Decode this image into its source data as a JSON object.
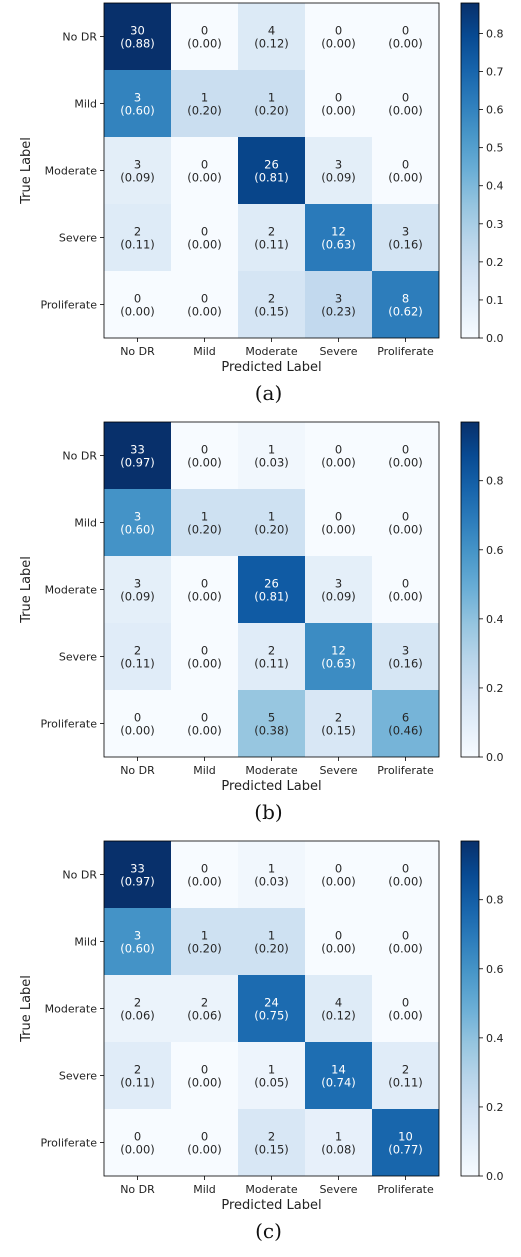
{
  "chart_data": [
    {
      "type": "heatmap",
      "caption": "(a)",
      "xlabel": "Predicted Label",
      "ylabel": "True Label",
      "x_categories": [
        "No DR",
        "Mild",
        "Moderate",
        "Severe",
        "Proliferate"
      ],
      "y_categories": [
        "No DR",
        "Mild",
        "Moderate",
        "Severe",
        "Proliferate"
      ],
      "counts": [
        [
          30,
          0,
          4,
          0,
          0
        ],
        [
          3,
          1,
          1,
          0,
          0
        ],
        [
          3,
          0,
          26,
          3,
          0
        ],
        [
          2,
          0,
          2,
          12,
          3
        ],
        [
          0,
          0,
          2,
          3,
          8
        ]
      ],
      "values": [
        [
          0.88,
          0.0,
          0.12,
          0.0,
          0.0
        ],
        [
          0.6,
          0.2,
          0.2,
          0.0,
          0.0
        ],
        [
          0.09,
          0.0,
          0.81,
          0.09,
          0.0
        ],
        [
          0.11,
          0.0,
          0.11,
          0.63,
          0.16
        ],
        [
          0.0,
          0.0,
          0.15,
          0.23,
          0.62
        ]
      ],
      "colorbar": {
        "range": [
          0,
          0.88
        ],
        "colormap": "Blues",
        "ticks": [
          "0.0",
          "0.1",
          "0.2",
          "0.3",
          "0.4",
          "0.5",
          "0.6",
          "0.7",
          "0.8"
        ]
      }
    },
    {
      "type": "heatmap",
      "caption": "(b)",
      "xlabel": "Predicted Label",
      "ylabel": "True Label",
      "x_categories": [
        "No DR",
        "Mild",
        "Moderate",
        "Severe",
        "Proliferate"
      ],
      "y_categories": [
        "No DR",
        "Mild",
        "Moderate",
        "Severe",
        "Proliferate"
      ],
      "counts": [
        [
          33,
          0,
          1,
          0,
          0
        ],
        [
          3,
          1,
          1,
          0,
          0
        ],
        [
          3,
          0,
          26,
          3,
          0
        ],
        [
          2,
          0,
          2,
          12,
          3
        ],
        [
          0,
          0,
          5,
          2,
          6
        ]
      ],
      "values": [
        [
          0.97,
          0.0,
          0.03,
          0.0,
          0.0
        ],
        [
          0.6,
          0.2,
          0.2,
          0.0,
          0.0
        ],
        [
          0.09,
          0.0,
          0.81,
          0.09,
          0.0
        ],
        [
          0.11,
          0.0,
          0.11,
          0.63,
          0.16
        ],
        [
          0.0,
          0.0,
          0.38,
          0.15,
          0.46
        ]
      ],
      "colorbar": {
        "range": [
          0,
          0.97
        ],
        "colormap": "Blues",
        "ticks": [
          "0.0",
          "0.2",
          "0.4",
          "0.6",
          "0.8"
        ]
      }
    },
    {
      "type": "heatmap",
      "caption": "(c)",
      "xlabel": "Predicted Label",
      "ylabel": "True Label",
      "x_categories": [
        "No DR",
        "Mild",
        "Moderate",
        "Severe",
        "Proliferate"
      ],
      "y_categories": [
        "No DR",
        "Mild",
        "Moderate",
        "Severe",
        "Proliferate"
      ],
      "counts": [
        [
          33,
          0,
          1,
          0,
          0
        ],
        [
          3,
          1,
          1,
          0,
          0
        ],
        [
          2,
          2,
          24,
          4,
          0
        ],
        [
          2,
          0,
          1,
          14,
          2
        ],
        [
          0,
          0,
          2,
          1,
          10
        ]
      ],
      "values": [
        [
          0.97,
          0.0,
          0.03,
          0.0,
          0.0
        ],
        [
          0.6,
          0.2,
          0.2,
          0.0,
          0.0
        ],
        [
          0.06,
          0.06,
          0.75,
          0.12,
          0.0
        ],
        [
          0.11,
          0.0,
          0.05,
          0.74,
          0.11
        ],
        [
          0.0,
          0.0,
          0.15,
          0.08,
          0.77
        ]
      ],
      "colorbar": {
        "range": [
          0,
          0.97
        ],
        "colormap": "Blues",
        "ticks": [
          "0.0",
          "0.2",
          "0.4",
          "0.6",
          "0.8"
        ]
      }
    }
  ]
}
